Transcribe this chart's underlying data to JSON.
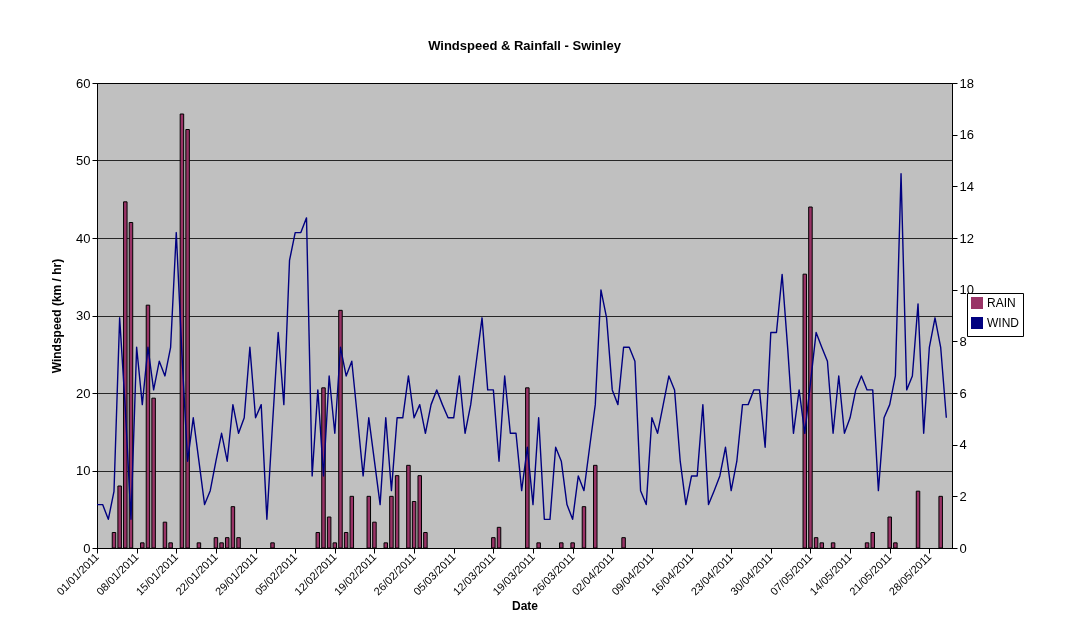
{
  "chart_data": {
    "type": "bar",
    "title": "Windspeed & Rainfall - Swinley",
    "xlabel": "Date",
    "ylabel": "Windspeed (km / hr)",
    "x": [
      "2011-01-01",
      "2011-01-02",
      "2011-01-03",
      "2011-01-04",
      "2011-01-05",
      "2011-01-06",
      "2011-01-07",
      "2011-01-08",
      "2011-01-09",
      "2011-01-10",
      "2011-01-11",
      "2011-01-12",
      "2011-01-13",
      "2011-01-14",
      "2011-01-15",
      "2011-01-16",
      "2011-01-17",
      "2011-01-18",
      "2011-01-19",
      "2011-01-20",
      "2011-01-21",
      "2011-01-22",
      "2011-01-23",
      "2011-01-24",
      "2011-01-25",
      "2011-01-26",
      "2011-01-27",
      "2011-01-28",
      "2011-01-29",
      "2011-01-30",
      "2011-01-31",
      "2011-02-01",
      "2011-02-02",
      "2011-02-03",
      "2011-02-04",
      "2011-02-05",
      "2011-02-06",
      "2011-02-07",
      "2011-02-08",
      "2011-02-09",
      "2011-02-10",
      "2011-02-11",
      "2011-02-12",
      "2011-02-13",
      "2011-02-14",
      "2011-02-15",
      "2011-02-16",
      "2011-02-17",
      "2011-02-18",
      "2011-02-19",
      "2011-02-20",
      "2011-02-21",
      "2011-02-22",
      "2011-02-23",
      "2011-02-24",
      "2011-02-25",
      "2011-02-26",
      "2011-02-27",
      "2011-02-28",
      "2011-03-01",
      "2011-03-02",
      "2011-03-03",
      "2011-03-04",
      "2011-03-05",
      "2011-03-06",
      "2011-03-07",
      "2011-03-08",
      "2011-03-09",
      "2011-03-10",
      "2011-03-11",
      "2011-03-12",
      "2011-03-13",
      "2011-03-14",
      "2011-03-15",
      "2011-03-16",
      "2011-03-17",
      "2011-03-18",
      "2011-03-19",
      "2011-03-20",
      "2011-03-21",
      "2011-03-22",
      "2011-03-23",
      "2011-03-24",
      "2011-03-25",
      "2011-03-26",
      "2011-03-27",
      "2011-03-28",
      "2011-03-29",
      "2011-03-30",
      "2011-03-31",
      "2011-04-01",
      "2011-04-02",
      "2011-04-03",
      "2011-04-04",
      "2011-04-05",
      "2011-04-06",
      "2011-04-07",
      "2011-04-08",
      "2011-04-09",
      "2011-04-10",
      "2011-04-11",
      "2011-04-12",
      "2011-04-13",
      "2011-04-14",
      "2011-04-15",
      "2011-04-16",
      "2011-04-17",
      "2011-04-18",
      "2011-04-19",
      "2011-04-20",
      "2011-04-21",
      "2011-04-22",
      "2011-04-23",
      "2011-04-24",
      "2011-04-25",
      "2011-04-26",
      "2011-04-27",
      "2011-04-28",
      "2011-04-29",
      "2011-04-30",
      "2011-05-01",
      "2011-05-02",
      "2011-05-03",
      "2011-05-04",
      "2011-05-05",
      "2011-05-06",
      "2011-05-07",
      "2011-05-08",
      "2011-05-09",
      "2011-05-10",
      "2011-05-11",
      "2011-05-12",
      "2011-05-13",
      "2011-05-14",
      "2011-05-15",
      "2011-05-16",
      "2011-05-17",
      "2011-05-18",
      "2011-05-19",
      "2011-05-20",
      "2011-05-21",
      "2011-05-22",
      "2011-05-23",
      "2011-05-24",
      "2011-05-25",
      "2011-05-26",
      "2011-05-27",
      "2011-05-28",
      "2011-05-29",
      "2011-05-30",
      "2011-05-31"
    ],
    "series": [
      {
        "name": "RAIN",
        "axis": "y2",
        "color": "#993366",
        "values": [
          null,
          null,
          null,
          0.6,
          2.4,
          13.4,
          12.6,
          null,
          0.2,
          9.4,
          5.8,
          null,
          1.0,
          0.2,
          null,
          16.8,
          16.2,
          null,
          0.2,
          null,
          null,
          0.4,
          0.2,
          0.4,
          1.6,
          0.4,
          null,
          null,
          null,
          null,
          null,
          0.2,
          null,
          null,
          null,
          null,
          null,
          null,
          null,
          0.6,
          6.2,
          1.2,
          0.2,
          9.2,
          0.6,
          2.0,
          null,
          null,
          2.0,
          1.0,
          null,
          0.2,
          2.0,
          2.8,
          null,
          3.2,
          1.8,
          2.8,
          0.6,
          null,
          null,
          null,
          null,
          null,
          null,
          null,
          null,
          null,
          null,
          null,
          0.4,
          0.8,
          null,
          null,
          null,
          null,
          6.2,
          null,
          0.2,
          null,
          null,
          null,
          0.2,
          null,
          0.2,
          null,
          1.6,
          null,
          3.2,
          null,
          null,
          null,
          null,
          0.4,
          null,
          null,
          null,
          null,
          null,
          null,
          null,
          null,
          null,
          null,
          null,
          null,
          null,
          null,
          null,
          null,
          null,
          null,
          null,
          null,
          null,
          null,
          null,
          null,
          null,
          null,
          null,
          null,
          null,
          null,
          null,
          10.6,
          13.2,
          0.4,
          0.2,
          null,
          0.2,
          null,
          null,
          null,
          null,
          null,
          0.2,
          0.6,
          null,
          null,
          1.2,
          0.2,
          null,
          null,
          null,
          2.2,
          null,
          null,
          null,
          2.0,
          null
        ]
      },
      {
        "name": "WIND",
        "type": "line",
        "color": "#000080",
        "values": [
          5.6,
          5.6,
          3.7,
          7.3,
          29.7,
          18,
          3.7,
          25.9,
          18.5,
          25.9,
          20.4,
          24.1,
          22.2,
          25.9,
          40.7,
          25,
          11.2,
          16.8,
          11.2,
          5.6,
          7.4,
          11.2,
          14.8,
          11.2,
          18.5,
          14.8,
          16.8,
          25.9,
          16.8,
          18.5,
          3.7,
          16,
          27.8,
          18.5,
          37.1,
          40.7,
          40.7,
          42.6,
          9.3,
          20.4,
          9.3,
          22.2,
          14.8,
          25.9,
          22.2,
          24.1,
          16.8,
          9.3,
          16.8,
          11.2,
          5.6,
          16.8,
          7.4,
          16.8,
          16.8,
          22.2,
          16.8,
          18.5,
          14.8,
          18.5,
          20.4,
          18.5,
          16.8,
          16.8,
          22.2,
          14.8,
          18.5,
          24.1,
          29.7,
          20.4,
          20.4,
          11.2,
          22.2,
          14.8,
          14.8,
          7.4,
          13.0,
          5.6,
          16.8,
          3.7,
          3.7,
          13.0,
          11.2,
          5.6,
          3.7,
          9.3,
          7.4,
          13.0,
          18.5,
          33.3,
          29.7,
          20.4,
          18.5,
          25.9,
          25.9,
          24.1,
          7.4,
          5.6,
          16.8,
          14.8,
          18.5,
          22.2,
          20.4,
          11.2,
          5.6,
          9.3,
          9.3,
          18.5,
          5.6,
          7.4,
          9.3,
          13.0,
          7.4,
          11.2,
          18.5,
          18.5,
          20.4,
          20.4,
          13.0,
          27.8,
          27.8,
          35.3,
          25.6,
          14.8,
          20.4,
          14.8,
          21.3,
          27.8,
          25.9,
          24.1,
          14.8,
          22.2,
          14.8,
          16.8,
          20.4,
          22.2,
          20.4,
          20.4,
          7.4,
          16.8,
          18.5,
          22.2,
          48.3,
          20.4,
          22.2,
          31.5,
          14.8,
          25.9,
          29.7,
          25.9,
          16.8
        ]
      }
    ],
    "xlim": [
      "2011-01-01",
      "2011-06-01"
    ],
    "xticks": [
      {
        "value": "2011-01-01",
        "label": "01/01/2011"
      },
      {
        "value": "2011-01-08",
        "label": "08/01/2011"
      },
      {
        "value": "2011-01-15",
        "label": "15/01/2011"
      },
      {
        "value": "2011-01-22",
        "label": "22/01/2011"
      },
      {
        "value": "2011-01-29",
        "label": "29/01/2011"
      },
      {
        "value": "2011-02-05",
        "label": "05/02/2011"
      },
      {
        "value": "2011-02-12",
        "label": "12/02/2011"
      },
      {
        "value": "2011-02-19",
        "label": "19/02/2011"
      },
      {
        "value": "2011-02-26",
        "label": "26/02/2011"
      },
      {
        "value": "2011-03-05",
        "label": "05/03/2011"
      },
      {
        "value": "2011-03-12",
        "label": "12/03/2011"
      },
      {
        "value": "2011-03-19",
        "label": "19/03/2011"
      },
      {
        "value": "2011-03-26",
        "label": "26/03/2011"
      },
      {
        "value": "2011-04-02",
        "label": "02/04/2011"
      },
      {
        "value": "2011-04-09",
        "label": "09/04/2011"
      },
      {
        "value": "2011-04-16",
        "label": "16/04/2011"
      },
      {
        "value": "2011-04-23",
        "label": "23/04/2011"
      },
      {
        "value": "2011-04-30",
        "label": "30/04/2011"
      },
      {
        "value": "2011-05-07",
        "label": "07/05/2011"
      },
      {
        "value": "2011-05-14",
        "label": "14/05/2011"
      },
      {
        "value": "2011-05-21",
        "label": "21/05/2011"
      },
      {
        "value": "2011-05-28",
        "label": "28/05/2011"
      }
    ],
    "ylim": [
      0,
      60
    ],
    "yticks": [
      0,
      10,
      20,
      30,
      40,
      50,
      60
    ],
    "y2lim": [
      0,
      18
    ],
    "y2ticks": [
      0,
      2,
      4,
      6,
      8,
      10,
      12,
      14,
      16,
      18
    ],
    "grid": "y",
    "legend": "right"
  }
}
